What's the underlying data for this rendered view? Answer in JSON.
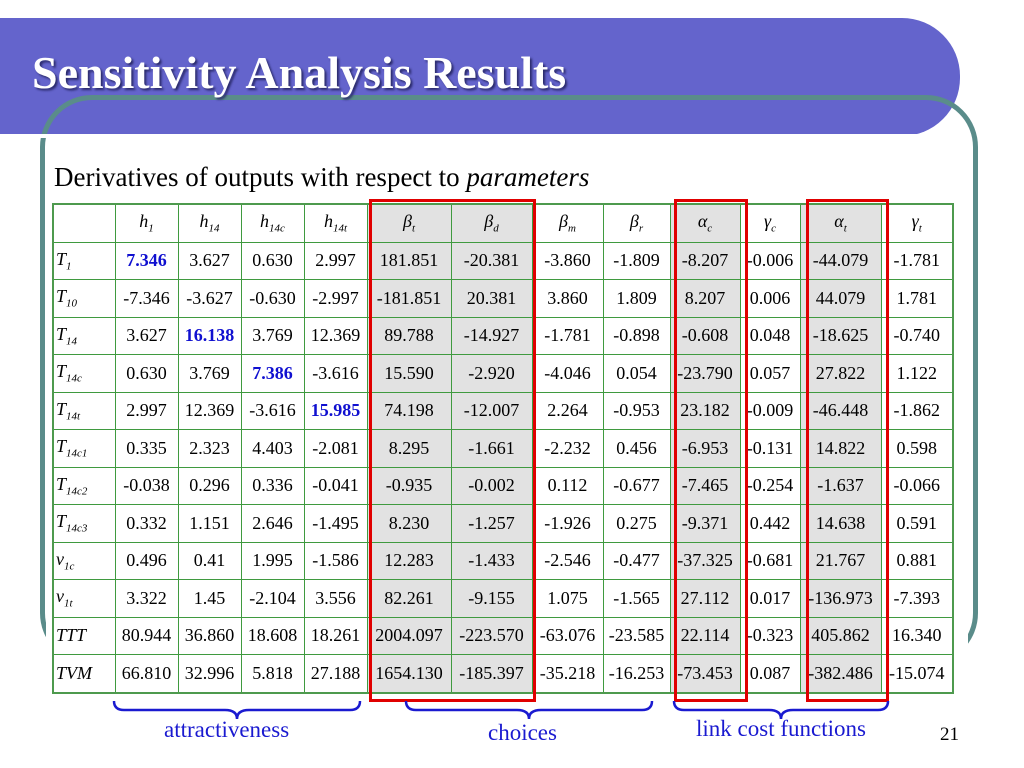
{
  "slide": {
    "title": "Sensitivity Analysis Results",
    "subtitle_prefix": "Derivatives of outputs with respect to ",
    "subtitle_italic": "parameters",
    "page_number": "21"
  },
  "table": {
    "columns": [
      {
        "base": "h",
        "sub": "1"
      },
      {
        "base": "h",
        "sub": "14"
      },
      {
        "base": "h",
        "sub": "14c"
      },
      {
        "base": "h",
        "sub": "14t"
      },
      {
        "base": "β",
        "sub": "t"
      },
      {
        "base": "β",
        "sub": "d"
      },
      {
        "base": "β",
        "sub": "m"
      },
      {
        "base": "β",
        "sub": "r"
      },
      {
        "base": "α",
        "sub": "c"
      },
      {
        "base": "γ",
        "sub": "c"
      },
      {
        "base": "α",
        "sub": "t"
      },
      {
        "base": "γ",
        "sub": "t"
      }
    ],
    "rows": [
      {
        "base": "T",
        "sub": "1",
        "values": [
          "7.346",
          "3.627",
          "0.630",
          "2.997",
          "181.851",
          "-20.381",
          "-3.860",
          "-1.809",
          "-8.207",
          "-0.006",
          "-44.079",
          "-1.781"
        ],
        "highlight": 0
      },
      {
        "base": "T",
        "sub": "10",
        "values": [
          "-7.346",
          "-3.627",
          "-0.630",
          "-2.997",
          "-181.851",
          "20.381",
          "3.860",
          "1.809",
          "8.207",
          "0.006",
          "44.079",
          "1.781"
        ]
      },
      {
        "base": "T",
        "sub": "14",
        "values": [
          "3.627",
          "16.138",
          "3.769",
          "12.369",
          "89.788",
          "-14.927",
          "-1.781",
          "-0.898",
          "-0.608",
          "0.048",
          "-18.625",
          "-0.740"
        ],
        "highlight": 1
      },
      {
        "base": "T",
        "sub": "14c",
        "values": [
          "0.630",
          "3.769",
          "7.386",
          "-3.616",
          "15.590",
          "-2.920",
          "-4.046",
          "0.054",
          "-23.790",
          "0.057",
          "27.822",
          "1.122"
        ],
        "highlight": 2
      },
      {
        "base": "T",
        "sub": "14t",
        "values": [
          "2.997",
          "12.369",
          "-3.616",
          "15.985",
          "74.198",
          "-12.007",
          "2.264",
          "-0.953",
          "23.182",
          "-0.009",
          "-46.448",
          "-1.862"
        ],
        "highlight": 3
      },
      {
        "base": "T",
        "sub": "14c1",
        "values": [
          "0.335",
          "2.323",
          "4.403",
          "-2.081",
          "8.295",
          "-1.661",
          "-2.232",
          "0.456",
          "-6.953",
          "-0.131",
          "14.822",
          "0.598"
        ]
      },
      {
        "base": "T",
        "sub": "14c2",
        "values": [
          "-0.038",
          "0.296",
          "0.336",
          "-0.041",
          "-0.935",
          "-0.002",
          "0.112",
          "-0.677",
          "-7.465",
          "-0.254",
          "-1.637",
          "-0.066"
        ]
      },
      {
        "base": "T",
        "sub": "14c3",
        "values": [
          "0.332",
          "1.151",
          "2.646",
          "-1.495",
          "8.230",
          "-1.257",
          "-1.926",
          "0.275",
          "-9.371",
          "0.442",
          "14.638",
          "0.591"
        ]
      },
      {
        "base": "v",
        "sub": "1c",
        "values": [
          "0.496",
          "0.41",
          "1.995",
          "-1.586",
          "12.283",
          "-1.433",
          "-2.546",
          "-0.477",
          "-37.325",
          "-0.681",
          "21.767",
          "0.881"
        ]
      },
      {
        "base": "v",
        "sub": "1t",
        "values": [
          "3.322",
          "1.45",
          "-2.104",
          "3.556",
          "82.261",
          "-9.155",
          "1.075",
          "-1.565",
          "27.112",
          "0.017",
          "-136.973",
          "-7.393"
        ]
      },
      {
        "base": "TTT",
        "sub": "",
        "values": [
          "80.944",
          "36.860",
          "18.608",
          "18.261",
          "2004.097",
          "-223.570",
          "-63.076",
          "-23.585",
          "22.114",
          "-0.323",
          "405.862",
          "16.340"
        ]
      },
      {
        "base": "TVM",
        "sub": "",
        "values": [
          "66.810",
          "32.996",
          "5.818",
          "27.188",
          "1654.130",
          "-185.397",
          "-35.218",
          "-16.253",
          "-73.453",
          "0.087",
          "-382.486",
          "-15.074"
        ]
      }
    ]
  },
  "groups": [
    {
      "label": "attractiveness"
    },
    {
      "label": "choices"
    },
    {
      "label": "link cost functions"
    }
  ],
  "colors": {
    "header_band": "#6464cc",
    "frame": "#5a8c8a",
    "table_border": "#3f9a3f",
    "red_box": "#e00000",
    "shade": "#e2e2e2",
    "highlight_text": "#1010d0",
    "group_label": "#1a1ad0"
  }
}
